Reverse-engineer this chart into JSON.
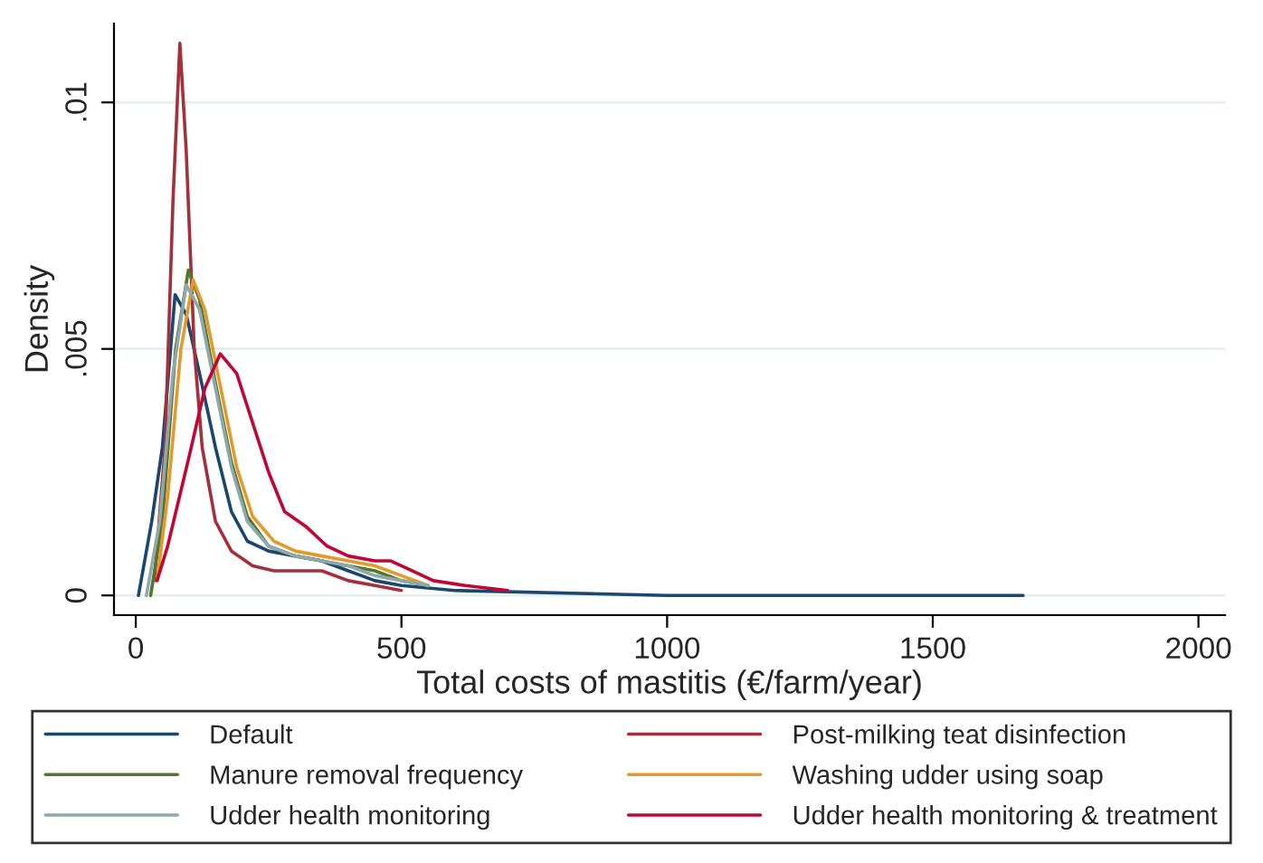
{
  "chart_data": {
    "type": "line",
    "xlabel": "Total costs of mastitis (€/farm/year)",
    "ylabel": "Density",
    "xlim": [
      -41,
      2050
    ],
    "ylim": [
      -0.0004,
      0.0116
    ],
    "xticks": [
      0,
      500,
      1000,
      1500,
      2000
    ],
    "yticks": [
      {
        "value": 0,
        "label": "0"
      },
      {
        "value": 0.005,
        "label": ".005"
      },
      {
        "value": 0.01,
        "label": ".01"
      }
    ],
    "grid": "y",
    "legend": "bottom",
    "line_style": "solid",
    "marker": "none",
    "series": [
      {
        "name": "Default",
        "color": "#1a476f",
        "x": [
          5,
          30,
          50,
          74,
          95,
          120,
          150,
          180,
          210,
          250,
          300,
          350,
          400,
          450,
          500,
          600,
          1000,
          1670
        ],
        "values": [
          0,
          0.0015,
          0.003,
          0.0061,
          0.0057,
          0.0045,
          0.003,
          0.0017,
          0.0011,
          0.0009,
          0.0008,
          0.0007,
          0.0005,
          0.0003,
          0.0002,
          0.0001,
          0,
          0
        ]
      },
      {
        "name": "Post-milking teat disinfection",
        "color": "#a3303b",
        "x": [
          35,
          55,
          70,
          83,
          95,
          110,
          125,
          150,
          180,
          220,
          260,
          300,
          350,
          400,
          450,
          500
        ],
        "values": [
          0.0003,
          0.003,
          0.008,
          0.0112,
          0.009,
          0.005,
          0.003,
          0.0015,
          0.0009,
          0.0006,
          0.0005,
          0.0005,
          0.0005,
          0.0003,
          0.0002,
          0.0001
        ]
      },
      {
        "name": "Manure removal frequency",
        "color": "#55752f",
        "x": [
          28,
          50,
          75,
          99,
          120,
          150,
          180,
          210,
          250,
          300,
          350,
          400,
          450,
          500,
          550
        ],
        "values": [
          0,
          0.0015,
          0.005,
          0.0066,
          0.006,
          0.0043,
          0.0027,
          0.0016,
          0.001,
          0.0008,
          0.0007,
          0.0006,
          0.0005,
          0.0003,
          0.0002
        ]
      },
      {
        "name": "Washing udder using soap",
        "color": "#e39a2a",
        "x": [
          40,
          60,
          85,
          108,
          130,
          160,
          190,
          220,
          260,
          300,
          350,
          400,
          450,
          500,
          550
        ],
        "values": [
          0.0003,
          0.002,
          0.005,
          0.0064,
          0.0058,
          0.0042,
          0.0026,
          0.0016,
          0.0011,
          0.0009,
          0.0008,
          0.0007,
          0.0006,
          0.0004,
          0.0002
        ]
      },
      {
        "name": "Udder health monitoring",
        "color": "#8fa8ac",
        "x": [
          20,
          45,
          70,
          95,
          120,
          150,
          180,
          210,
          250,
          300,
          350,
          400,
          450,
          500,
          550
        ],
        "values": [
          0,
          0.0015,
          0.0045,
          0.0063,
          0.0058,
          0.0042,
          0.0026,
          0.0015,
          0.001,
          0.0008,
          0.0007,
          0.0006,
          0.0004,
          0.0003,
          0.0002
        ]
      },
      {
        "name": "Udder health monitoring & treatment",
        "color": "#c10534",
        "x": [
          40,
          60,
          100,
          130,
          159,
          190,
          220,
          250,
          280,
          320,
          360,
          400,
          450,
          480,
          520,
          560,
          620,
          700
        ],
        "values": [
          0.0003,
          0.001,
          0.0028,
          0.0042,
          0.0049,
          0.0045,
          0.0035,
          0.0025,
          0.0017,
          0.0014,
          0.001,
          0.0008,
          0.0007,
          0.0007,
          0.0005,
          0.0003,
          0.0002,
          0.0001
        ]
      }
    ]
  }
}
